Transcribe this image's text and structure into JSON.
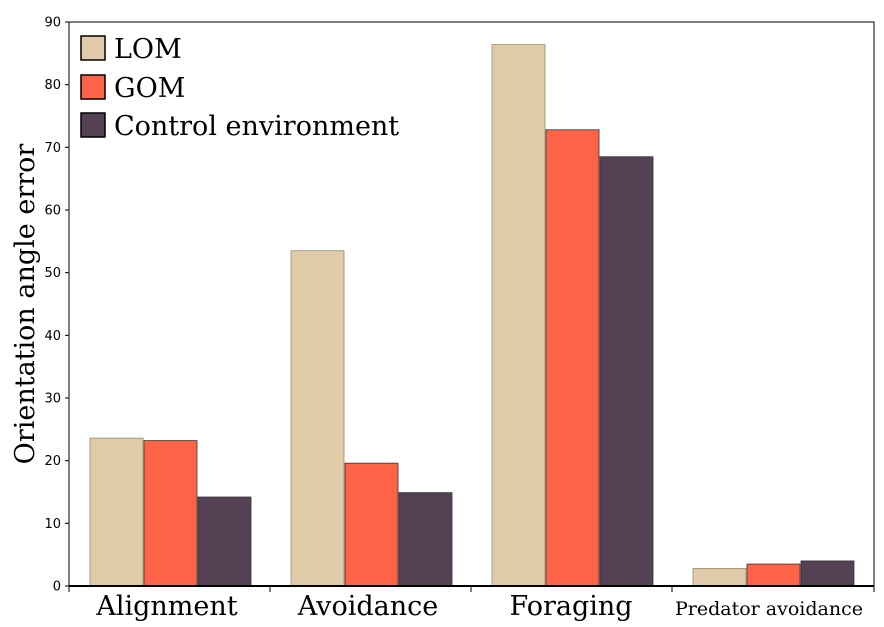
{
  "chart_data": {
    "type": "bar",
    "title": "",
    "xlabel": "",
    "ylabel": "Orientation angle error",
    "ylim": [
      0,
      90
    ],
    "yticks": [
      0,
      10,
      20,
      30,
      40,
      50,
      60,
      70,
      80,
      90
    ],
    "grid": false,
    "legend_position": "top-left",
    "categories": [
      "Alignment",
      "Avoidance",
      "Foraging",
      "Predator avoidance"
    ],
    "series": [
      {
        "name": "LOM",
        "color": "#E0CBA8",
        "values": [
          23.6,
          53.5,
          86.4,
          2.8
        ]
      },
      {
        "name": "GOM",
        "color": "#FF6347",
        "values": [
          23.2,
          19.6,
          72.8,
          3.5
        ]
      },
      {
        "name": "Control environment",
        "color": "#544153",
        "values": [
          14.2,
          14.9,
          68.5,
          4.0
        ]
      }
    ]
  }
}
